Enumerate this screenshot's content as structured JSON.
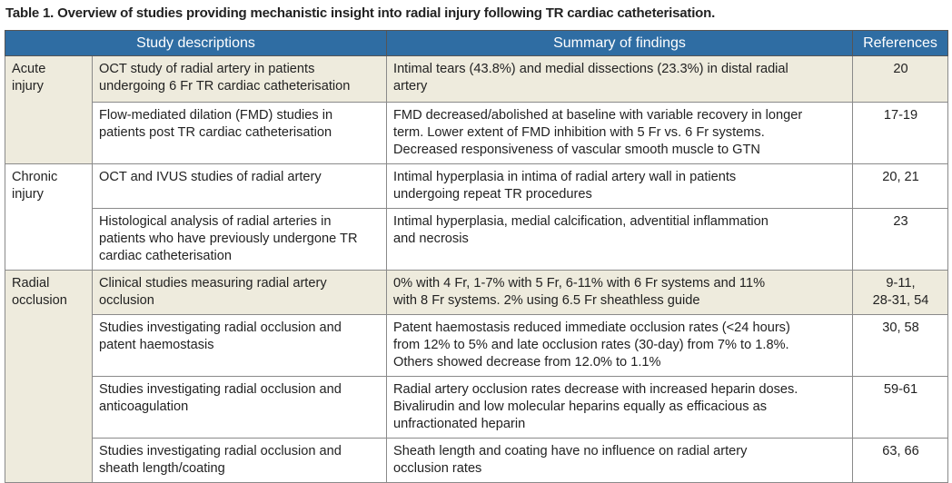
{
  "table": {
    "title": "Table 1. Overview of studies providing mechanistic insight into radial injury following TR cardiac catheterisation.",
    "headers": [
      "Study descriptions",
      "Summary of findings",
      "References"
    ],
    "groups": [
      {
        "label": [
          "Acute",
          "injury"
        ],
        "rows": [
          {
            "description": [
              "OCT study of radial artery in patients",
              "undergoing 6 Fr TR cardiac catheterisation"
            ],
            "findings": [
              "Intimal tears (43.8%) and medial dissections (23.3%) in distal radial",
              "artery"
            ],
            "references": [
              "20"
            ]
          },
          {
            "description": [
              "Flow-mediated dilation (FMD) studies in",
              "patients post TR cardiac catheterisation"
            ],
            "findings": [
              "FMD decreased/abolished at baseline with variable recovery in longer",
              "term. Lower extent of FMD inhibition with 5 Fr vs. 6 Fr systems.",
              "Decreased responsiveness of vascular smooth muscle to GTN"
            ],
            "references": [
              "17-19"
            ]
          }
        ]
      },
      {
        "label": [
          "Chronic",
          "injury"
        ],
        "rows": [
          {
            "description": [
              "OCT and IVUS studies of radial artery"
            ],
            "findings": [
              "Intimal hyperplasia in intima of radial artery wall in patients",
              "undergoing repeat TR procedures"
            ],
            "references": [
              "20, 21"
            ]
          },
          {
            "description": [
              "Histological analysis of radial arteries in",
              "patients who have previously undergone TR",
              "cardiac catheterisation"
            ],
            "findings": [
              "Intimal hyperplasia, medial calcification, adventitial inflammation",
              "and necrosis"
            ],
            "references": [
              "23"
            ]
          }
        ]
      },
      {
        "label": [
          "Radial",
          "occlusion"
        ],
        "rows": [
          {
            "description": [
              "Clinical studies measuring radial artery",
              "occlusion"
            ],
            "findings": [
              "0% with 4 Fr, 1-7% with 5 Fr, 6-11% with 6 Fr systems and 11%",
              "with 8 Fr systems. 2% using 6.5 Fr sheathless guide"
            ],
            "references": [
              "9-11,",
              "28-31, 54"
            ]
          },
          {
            "description": [
              "Studies investigating radial occlusion and",
              "patent haemostasis"
            ],
            "findings": [
              "Patent haemostasis reduced immediate occlusion rates (<24 hours)",
              "from 12% to 5% and late occlusion rates (30-day) from 7% to 1.8%.",
              "Others showed decrease from 12.0% to 1.1%"
            ],
            "references": [
              "30, 58"
            ]
          },
          {
            "description": [
              "Studies investigating radial occlusion and",
              "anticoagulation"
            ],
            "findings": [
              "Radial artery occlusion rates decrease with increased heparin doses.",
              "Bivalirudin and low molecular heparins equally as efficacious as",
              "unfractionated heparin"
            ],
            "references": [
              "59-61"
            ]
          },
          {
            "description": [
              "Studies investigating radial occlusion and",
              "sheath length/coating"
            ],
            "findings": [
              "Sheath length and coating have no influence on radial artery",
              "occlusion rates"
            ],
            "references": [
              "63, 66"
            ]
          }
        ]
      }
    ]
  }
}
